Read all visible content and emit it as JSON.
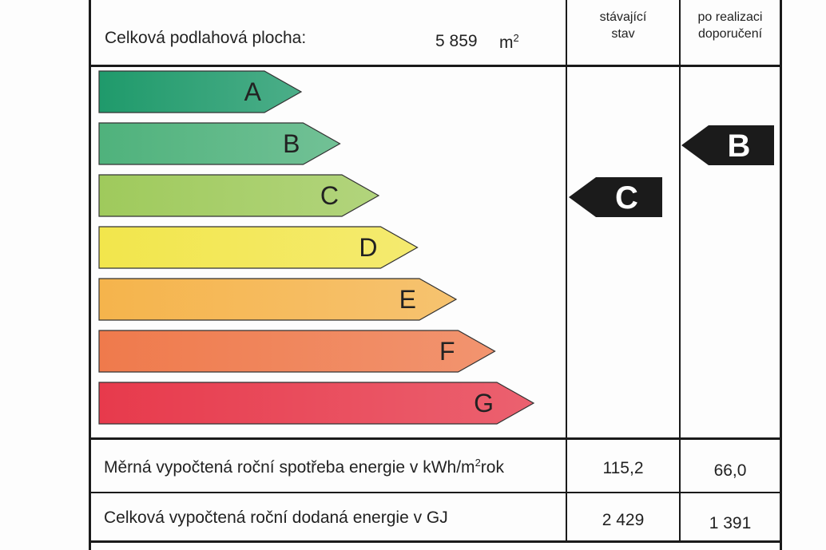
{
  "header": {
    "floor_area_label": "Celková podlahová plocha:",
    "floor_area_value": "5 859",
    "floor_area_unit": "m",
    "floor_area_unit_exp": "2",
    "col_current": [
      "stávající",
      "stav"
    ],
    "col_after": [
      "po realizaci",
      "doporučení"
    ]
  },
  "scale": {
    "classes": [
      {
        "letter": "A",
        "color": "#1f9a6b"
      },
      {
        "letter": "B",
        "color": "#4fb27c"
      },
      {
        "letter": "C",
        "color": "#9fca5c"
      },
      {
        "letter": "D",
        "color": "#f2e64c"
      },
      {
        "letter": "E",
        "color": "#f5b44c"
      },
      {
        "letter": "F",
        "color": "#ef7a4c"
      },
      {
        "letter": "G",
        "color": "#e73a4c"
      }
    ],
    "current_class": "C",
    "after_class": "B"
  },
  "rows": [
    {
      "label": "Měrná vypočtená roční spotřeba energie v kWh/m",
      "label_exp": "2",
      "label_suffix": "rok",
      "current": "115,2",
      "after": "66,0"
    },
    {
      "label": "Celková vypočtená roční dodaná energie v GJ",
      "current": "2 429",
      "after": "1 391"
    }
  ]
}
